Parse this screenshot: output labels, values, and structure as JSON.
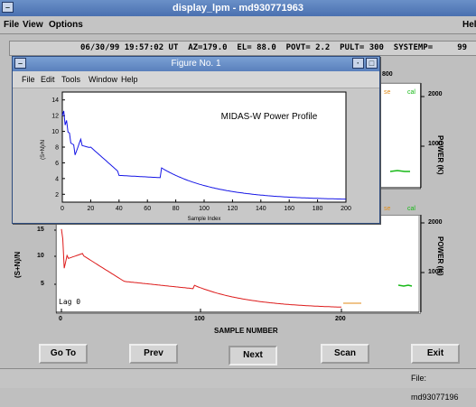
{
  "window": {
    "title": "display_lpm - md930771963",
    "menu": [
      "File",
      "View",
      "Options"
    ],
    "help": "Hel"
  },
  "status_line": "06/30/99 19:57:02 UT  AZ=179.0  EL= 88.0  POVT= 2.2  PULT= 300  SYSTEMP=     99",
  "figure": {
    "title": "Figure No. 1",
    "menu": [
      "File",
      "Edit",
      "Tools",
      "Window",
      "Help"
    ],
    "plot_title": "MIDAS-W Power Profile",
    "xlabel": "Sample Index",
    "ylabel": "(S+N)/N",
    "x_ticks": [
      "0",
      "20",
      "40",
      "60",
      "80",
      "100",
      "120",
      "140",
      "160",
      "180",
      "200"
    ],
    "y_ticks": [
      "2",
      "4",
      "6",
      "8",
      "10",
      "12",
      "14"
    ],
    "series_color": "#1515e6"
  },
  "top_panel": {
    "label_se": "se",
    "label_cal": "cal",
    "right_axis_label": "POWER (K)",
    "right_ticks": [
      "2000",
      "1000"
    ],
    "top_tick": "800"
  },
  "bottom_panel": {
    "ylabel": "(S+N)/N",
    "y_ticks": [
      "15",
      "10",
      "5"
    ],
    "x_ticks": [
      "0",
      "100",
      "200"
    ],
    "xlabel": "SAMPLE NUMBER",
    "lag_label": "Lag 0",
    "label_se": "se",
    "label_cal": "cal",
    "right_axis_label": "POWER (K)",
    "right_ticks": [
      "2000",
      "1000"
    ],
    "series_color": "#dd1a1a"
  },
  "buttons": {
    "goto": "Go To",
    "prev": "Prev",
    "next": "Next",
    "scan": "Scan",
    "exit": "Exit"
  },
  "footer_text": "File:  md93077196"
}
